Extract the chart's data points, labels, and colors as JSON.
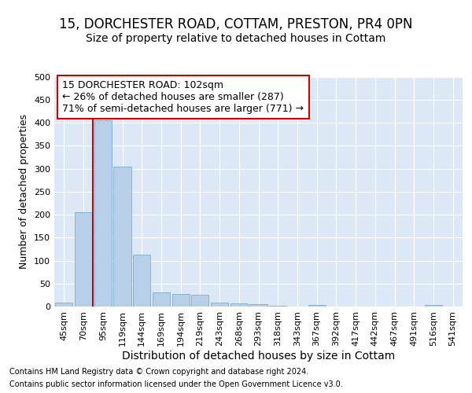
{
  "title1": "15, DORCHESTER ROAD, COTTAM, PRESTON, PR4 0PN",
  "title2": "Size of property relative to detached houses in Cottam",
  "xlabel": "Distribution of detached houses by size in Cottam",
  "ylabel": "Number of detached properties",
  "categories": [
    "45sqm",
    "70sqm",
    "95sqm",
    "119sqm",
    "144sqm",
    "169sqm",
    "194sqm",
    "219sqm",
    "243sqm",
    "268sqm",
    "293sqm",
    "318sqm",
    "343sqm",
    "367sqm",
    "392sqm",
    "417sqm",
    "442sqm",
    "467sqm",
    "491sqm",
    "516sqm",
    "541sqm"
  ],
  "values": [
    8,
    205,
    405,
    305,
    113,
    30,
    27,
    25,
    8,
    6,
    5,
    2,
    0,
    3,
    0,
    0,
    0,
    0,
    0,
    4,
    0
  ],
  "bar_color": "#b8cfe8",
  "bar_edge_color": "#7aadd4",
  "red_line_index": 2,
  "annotation_text": "15 DORCHESTER ROAD: 102sqm\n← 26% of detached houses are smaller (287)\n71% of semi-detached houses are larger (771) →",
  "annotation_box_facecolor": "#ffffff",
  "annotation_box_edgecolor": "#cc0000",
  "footer1": "Contains HM Land Registry data © Crown copyright and database right 2024.",
  "footer2": "Contains public sector information licensed under the Open Government Licence v3.0.",
  "ylim": [
    0,
    500
  ],
  "yticks": [
    0,
    50,
    100,
    150,
    200,
    250,
    300,
    350,
    400,
    450,
    500
  ],
  "bg_color": "#dce8f5",
  "grid_color": "#ffffff",
  "fig_bg": "#ffffff",
  "title1_fontsize": 12,
  "title2_fontsize": 10,
  "xlabel_fontsize": 10,
  "ylabel_fontsize": 9,
  "tick_fontsize": 8,
  "annot_fontsize": 9,
  "footer_fontsize": 7
}
